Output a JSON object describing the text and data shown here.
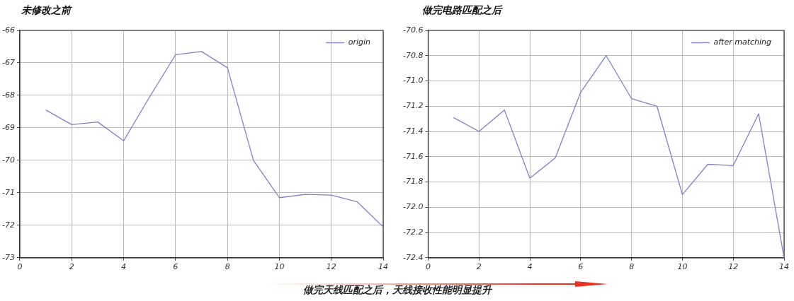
{
  "chart_data": [
    {
      "type": "line",
      "title": "未修改之前",
      "x": [
        1,
        2,
        3,
        4,
        5,
        6,
        7,
        8,
        9,
        10,
        11,
        12,
        13,
        14
      ],
      "series": [
        {
          "name": "origin",
          "color": "#7f80c8",
          "values": [
            -68.45,
            -68.9,
            -68.82,
            -69.4,
            -68.05,
            -66.75,
            -66.65,
            -67.15,
            -70.0,
            -71.15,
            -71.05,
            -71.07,
            -71.28,
            -72.05
          ]
        }
      ],
      "xlim": [
        0,
        14
      ],
      "xticks": [
        0,
        2,
        4,
        6,
        8,
        10,
        12,
        14
      ],
      "ylim": [
        -73,
        -66
      ],
      "yticks": [
        -73,
        -72,
        -71,
        -70,
        -69,
        -68,
        -67,
        -66
      ],
      "grid": true,
      "legend": "top right",
      "marker": "none",
      "line_style": "solid"
    },
    {
      "type": "line",
      "title": "做完电路匹配之后",
      "x": [
        1,
        2,
        3,
        4,
        5,
        6,
        7,
        8,
        9,
        10,
        11,
        12,
        13,
        14
      ],
      "series": [
        {
          "name": "after matching",
          "color": "#7f80c8",
          "values": [
            -71.29,
            -71.4,
            -71.23,
            -71.77,
            -71.61,
            -71.09,
            -70.8,
            -71.14,
            -71.2,
            -71.9,
            -71.66,
            -71.67,
            -71.26,
            -72.4
          ]
        }
      ],
      "xlim": [
        0,
        14
      ],
      "xticks": [
        0,
        2,
        4,
        6,
        8,
        10,
        12,
        14
      ],
      "ylim": [
        -72.4,
        -70.6
      ],
      "yticks": [
        -72.4,
        -72.2,
        {
          "value": -72,
          "label": "-72.0"
        },
        -71.8,
        -71.6,
        -71.4,
        -71.2,
        {
          "value": -71,
          "label": "-71.0"
        },
        -70.8,
        -70.6
      ],
      "grid": true,
      "legend": "top right",
      "marker": "none",
      "line_style": "solid",
      "annotations": [
        "做完天线匹配之后，天线接收性能明显提升"
      ]
    }
  ]
}
